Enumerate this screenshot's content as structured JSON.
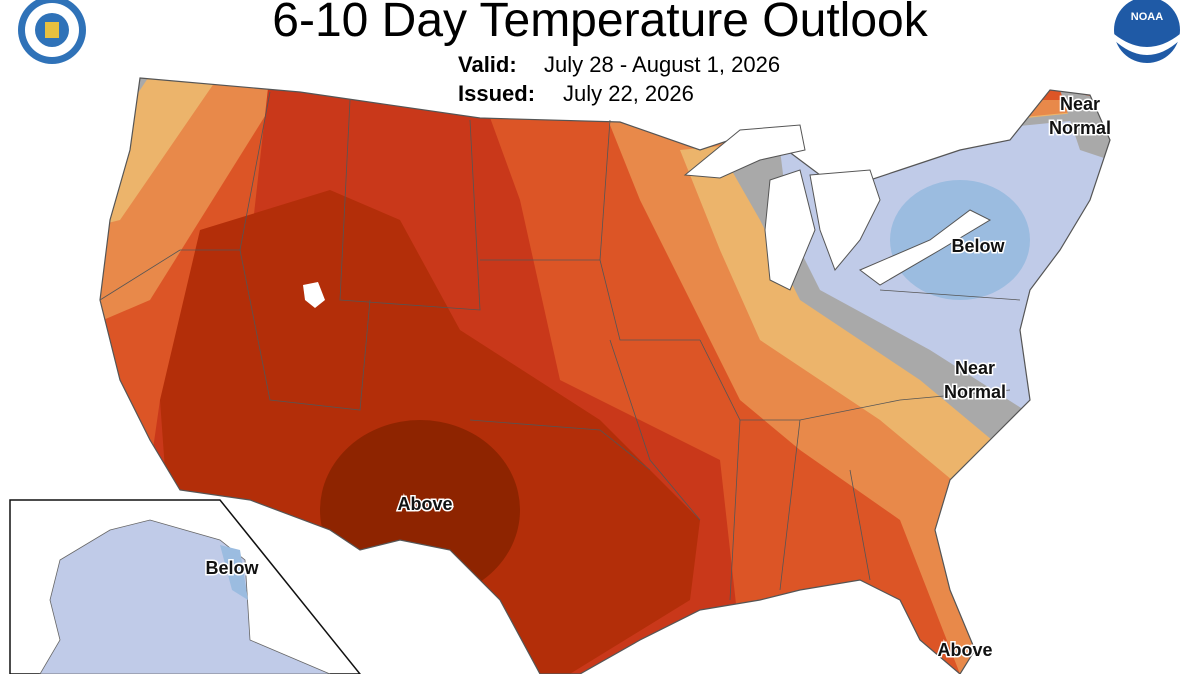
{
  "header": {
    "title": "6-10 Day Temperature Outlook",
    "valid_label": "Valid:",
    "valid_dates": "July 28 - August 1, 2026",
    "issued_label": "Issued:",
    "issued_date": "July 22, 2026",
    "logo_text": "NOAA"
  },
  "labels": [
    {
      "lines": [
        "Near",
        "Normal"
      ]
    },
    {
      "lines": [
        "Below"
      ]
    },
    {
      "lines": [
        "Near",
        "Normal"
      ]
    },
    {
      "lines": [
        "Above"
      ]
    },
    {
      "lines": [
        "Below"
      ]
    },
    {
      "lines": [
        "Above"
      ]
    }
  ]
}
